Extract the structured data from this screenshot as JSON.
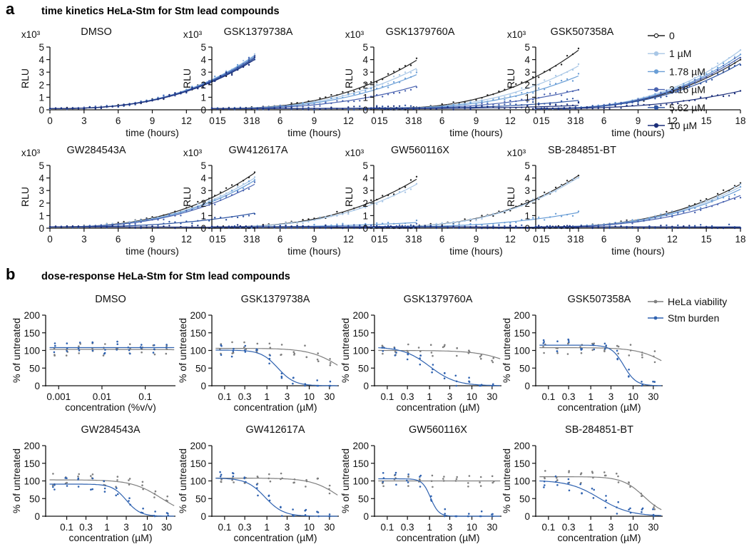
{
  "panels": {
    "a": {
      "label": "a",
      "heading": "time kinetics HeLa-Stm for Stm lead compounds"
    },
    "b": {
      "label": "b",
      "heading": "dose-response HeLa-Stm for Stm lead compounds"
    }
  },
  "colors": {
    "c0": "#222222",
    "c1": "#a9c7e6",
    "c2": "#6a9ed6",
    "c3": "#4a63b0",
    "c4": "#2f55a3",
    "c5": "#1c2f7a",
    "viability": "#7f7f7f",
    "burden": "#2f62b0"
  },
  "legend_a": {
    "items": [
      {
        "label": "0",
        "color": "#222222"
      },
      {
        "label": "1 µM",
        "color": "#a9c7e6"
      },
      {
        "label": "1.78 µM",
        "color": "#6a9ed6"
      },
      {
        "label": "3.16 µM",
        "color": "#4a63b0"
      },
      {
        "label": "5.62 µM",
        "color": "#2f55a3"
      },
      {
        "label": "10 µM",
        "color": "#1c2f7a"
      }
    ]
  },
  "legend_b": {
    "items": [
      {
        "label": "HeLa viability",
        "color": "#7f7f7f"
      },
      {
        "label": "Stm burden",
        "color": "#2f62b0"
      }
    ]
  },
  "chart_data": [
    {
      "type": "line",
      "title": "DMSO",
      "xlabel": "time (hours)",
      "ylabel": "RLU",
      "multiplier": "x10³",
      "xlim": [
        0,
        18
      ],
      "ylim": [
        0,
        5
      ],
      "xticks": [
        "0",
        "3",
        "6",
        "9",
        "12",
        "15",
        "18"
      ],
      "yticks": [
        "0",
        "1",
        "2",
        "3",
        "4",
        "5"
      ],
      "series": [
        {
          "name": "0",
          "end": 4.1
        },
        {
          "name": "1 µM",
          "end": 4.35
        },
        {
          "name": "1.78 µM",
          "end": 4.3
        },
        {
          "name": "3.16 µM",
          "end": 4.2
        },
        {
          "name": "5.62 µM",
          "end": 4.1
        },
        {
          "name": "10 µM",
          "end": 4.0
        }
      ]
    },
    {
      "type": "line",
      "title": "GSK1379738A",
      "xlabel": "time (hours)",
      "ylabel": "RLU",
      "multiplier": "x10³",
      "xlim": [
        0,
        18
      ],
      "ylim": [
        0,
        5
      ],
      "xticks": [
        "0",
        "3",
        "6",
        "9",
        "12",
        "15",
        "18"
      ],
      "yticks": [
        "0",
        "1",
        "2",
        "3",
        "4",
        "5"
      ],
      "series": [
        {
          "name": "0",
          "end": 3.95
        },
        {
          "name": "1 µM",
          "end": 3.3
        },
        {
          "name": "1.78 µM",
          "end": 2.8
        },
        {
          "name": "3.16 µM",
          "end": 1.9
        },
        {
          "name": "5.62 µM",
          "end": 0.18
        },
        {
          "name": "10 µM",
          "end": 0.1
        }
      ]
    },
    {
      "type": "line",
      "title": "GSK1379760A",
      "xlabel": "time (hours)",
      "ylabel": "RLU",
      "multiplier": "x10³",
      "xlim": [
        0,
        18
      ],
      "ylim": [
        0,
        5
      ],
      "xticks": [
        "0",
        "3",
        "6",
        "9",
        "12",
        "15",
        "18"
      ],
      "yticks": [
        "0",
        "1",
        "2",
        "3",
        "4",
        "5"
      ],
      "series": [
        {
          "name": "0",
          "end": 4.75
        },
        {
          "name": "1 µM",
          "end": 3.5
        },
        {
          "name": "1.78 µM",
          "end": 2.7
        },
        {
          "name": "3.16 µM",
          "end": 1.6
        },
        {
          "name": "5.62 µM",
          "end": 0.75
        },
        {
          "name": "10 µM",
          "end": 0.35
        }
      ]
    },
    {
      "type": "line",
      "title": "GSK507358A",
      "xlabel": "time (hours)",
      "ylabel": "RLU",
      "multiplier": "x10³",
      "xlim": [
        0,
        18
      ],
      "ylim": [
        0,
        5
      ],
      "xticks": [
        "0",
        "3",
        "6",
        "9",
        "12",
        "15",
        "18"
      ],
      "yticks": [
        "0",
        "1",
        "2",
        "3",
        "4",
        "5"
      ],
      "series": [
        {
          "name": "0",
          "end": 4.0
        },
        {
          "name": "1 µM",
          "end": 4.75
        },
        {
          "name": "1.78 µM",
          "end": 4.4
        },
        {
          "name": "3.16 µM",
          "end": 4.2
        },
        {
          "name": "5.62 µM",
          "end": 3.7
        },
        {
          "name": "10 µM",
          "end": 1.5
        }
      ]
    },
    {
      "type": "line",
      "title": "GW284543A",
      "xlabel": "time (hours)",
      "ylabel": "RLU",
      "multiplier": "x10³",
      "xlim": [
        0,
        18
      ],
      "ylim": [
        0,
        5
      ],
      "xticks": [
        "0",
        "3",
        "6",
        "9",
        "12",
        "15",
        "18"
      ],
      "yticks": [
        "0",
        "1",
        "2",
        "3",
        "4",
        "5"
      ],
      "series": [
        {
          "name": "0",
          "end": 4.4
        },
        {
          "name": "1 µM",
          "end": 4.0
        },
        {
          "name": "1.78 µM",
          "end": 3.8
        },
        {
          "name": "3.16 µM",
          "end": 3.5
        },
        {
          "name": "5.62 µM",
          "end": 1.2
        },
        {
          "name": "10 µM",
          "end": 0.05
        }
      ]
    },
    {
      "type": "line",
      "title": "GW412617A",
      "xlabel": "time (hours)",
      "ylabel": "RLU",
      "multiplier": "x10³",
      "xlim": [
        0,
        18
      ],
      "ylim": [
        0,
        5
      ],
      "xticks": [
        "0",
        "3",
        "6",
        "9",
        "12",
        "15",
        "18"
      ],
      "yticks": [
        "0",
        "1",
        "2",
        "3",
        "4",
        "5"
      ],
      "series": [
        {
          "name": "0",
          "end": 3.9
        },
        {
          "name": "1 µM",
          "end": 3.5
        },
        {
          "name": "1.78 µM",
          "end": 0.45
        },
        {
          "name": "3.16 µM",
          "end": 0.15
        },
        {
          "name": "5.62 µM",
          "end": 0.05
        },
        {
          "name": "10 µM",
          "end": 0.03
        }
      ]
    },
    {
      "type": "line",
      "title": "GW560116X",
      "xlabel": "time (hours)",
      "ylabel": "RLU",
      "multiplier": "x10³",
      "xlim": [
        0,
        18
      ],
      "ylim": [
        0,
        5
      ],
      "xticks": [
        "0",
        "3",
        "6",
        "9",
        "12",
        "15",
        "18"
      ],
      "yticks": [
        "0",
        "1",
        "2",
        "3",
        "4",
        "5"
      ],
      "series": [
        {
          "name": "0",
          "end": 4.2
        },
        {
          "name": "1 µM",
          "end": 4.05
        },
        {
          "name": "1.78 µM",
          "end": 1.25
        },
        {
          "name": "3.16 µM",
          "end": 0.05
        },
        {
          "name": "5.62 µM",
          "end": 0.03
        },
        {
          "name": "10 µM",
          "end": 0.02
        }
      ]
    },
    {
      "type": "line",
      "title": "SB-284851-BT",
      "xlabel": "time (hours)",
      "ylabel": "RLU",
      "multiplier": "x10³",
      "xlim": [
        0,
        18
      ],
      "ylim": [
        0,
        5
      ],
      "xticks": [
        "0",
        "3",
        "6",
        "9",
        "12",
        "15",
        "18"
      ],
      "yticks": [
        "0",
        "1",
        "2",
        "3",
        "4",
        "5"
      ],
      "series": [
        {
          "name": "0",
          "end": 3.5
        },
        {
          "name": "1 µM",
          "end": 3.3
        },
        {
          "name": "1.78 µM",
          "end": 3.1
        },
        {
          "name": "3.16 µM",
          "end": 2.6
        },
        {
          "name": "5.62 µM",
          "end": 0.1
        },
        {
          "name": "10 µM",
          "end": 0.05
        }
      ]
    },
    {
      "type": "scatter",
      "title": "DMSO",
      "xlabel": "concentration (%v/v)",
      "ylabel": "% of untreated",
      "xscale": "log",
      "xlim": [
        0.0005,
        0.5
      ],
      "ylim": [
        0,
        200
      ],
      "xtick_values": [
        0.001,
        0.01,
        0.1
      ],
      "xticks": [
        "0.001",
        "0.01",
        "0.1"
      ],
      "yticks": [
        "0",
        "50",
        "100",
        "150",
        "200"
      ],
      "series": [
        {
          "name": "HeLa viability",
          "fit": {
            "top": 103,
            "bottom": 100,
            "ec50": 1,
            "hill": 1
          }
        },
        {
          "name": "Stm burden",
          "fit": {
            "top": 108,
            "bottom": 108,
            "ec50": 1,
            "hill": 1
          }
        }
      ]
    },
    {
      "type": "scatter",
      "title": "GSK1379738A",
      "xlabel": "concentration (µM)",
      "ylabel": "% of untreated",
      "xscale": "log",
      "xlim": [
        0.05,
        50
      ],
      "ylim": [
        0,
        200
      ],
      "xtick_values": [
        0.1,
        0.3,
        1,
        3,
        10,
        30
      ],
      "xticks": [
        "0.1",
        "0.3",
        "1",
        "3",
        "10",
        "30"
      ],
      "yticks": [
        "0",
        "50",
        "100",
        "150",
        "200"
      ],
      "series": [
        {
          "name": "HeLa viability",
          "fit": {
            "top": 106,
            "bottom": 0,
            "ec50": 55,
            "hill": 1.2
          }
        },
        {
          "name": "Stm burden",
          "fit": {
            "top": 101,
            "bottom": 0,
            "ec50": 1.8,
            "hill": 2.2
          }
        }
      ]
    },
    {
      "type": "scatter",
      "title": "GSK1379760A",
      "xlabel": "concentration (µM)",
      "ylabel": "% of untreated",
      "xscale": "log",
      "xlim": [
        0.05,
        50
      ],
      "ylim": [
        0,
        200
      ],
      "xtick_values": [
        0.1,
        0.3,
        1,
        3,
        10,
        30
      ],
      "xticks": [
        "0.1",
        "0.3",
        "1",
        "3",
        "10",
        "30"
      ],
      "yticks": [
        "0",
        "50",
        "100",
        "150",
        "200"
      ],
      "series": [
        {
          "name": "HeLa viability",
          "fit": {
            "top": 100,
            "bottom": 0,
            "ec50": 150,
            "hill": 1
          }
        },
        {
          "name": "Stm burden",
          "fit": {
            "top": 110,
            "bottom": 0,
            "ec50": 1.0,
            "hill": 1.4
          }
        }
      ]
    },
    {
      "type": "scatter",
      "title": "GSK507358A",
      "xlabel": "concentration (µM)",
      "ylabel": "% of untreated",
      "xscale": "log",
      "xlim": [
        0.05,
        50
      ],
      "ylim": [
        0,
        200
      ],
      "xtick_values": [
        0.1,
        0.3,
        1,
        3,
        10,
        30
      ],
      "xticks": [
        "0.1",
        "0.3",
        "1",
        "3",
        "10",
        "30"
      ],
      "yticks": [
        "0",
        "50",
        "100",
        "150",
        "200"
      ],
      "series": [
        {
          "name": "HeLa viability",
          "fit": {
            "top": 108,
            "bottom": 0,
            "ec50": 80,
            "hill": 1.2
          }
        },
        {
          "name": "Stm burden",
          "fit": {
            "top": 115,
            "bottom": 0,
            "ec50": 6,
            "hill": 3
          }
        }
      ]
    },
    {
      "type": "scatter",
      "title": "GW284543A",
      "xlabel": "concentration (µM)",
      "ylabel": "% of untreated",
      "xscale": "log",
      "xlim": [
        0.03,
        50
      ],
      "ylim": [
        0,
        200
      ],
      "xtick_values": [
        0.1,
        0.3,
        1,
        3,
        10,
        30
      ],
      "xticks": [
        "0.1",
        "0.3",
        "1",
        "3",
        "10",
        "30"
      ],
      "yticks": [
        "0",
        "50",
        "100",
        "150",
        "200"
      ],
      "series": [
        {
          "name": "HeLa viability",
          "fit": {
            "top": 103,
            "bottom": 0,
            "ec50": 22,
            "hill": 1.2
          }
        },
        {
          "name": "Stm burden",
          "fit": {
            "top": 91,
            "bottom": 0,
            "ec50": 3,
            "hill": 2.5
          }
        }
      ]
    },
    {
      "type": "scatter",
      "title": "GW412617A",
      "xlabel": "concentration (µM)",
      "ylabel": "% of untreated",
      "xscale": "log",
      "xlim": [
        0.05,
        50
      ],
      "ylim": [
        0,
        200
      ],
      "xtick_values": [
        0.1,
        0.3,
        1,
        3,
        10,
        30
      ],
      "xticks": [
        "0.1",
        "0.3",
        "1",
        "3",
        "10",
        "30"
      ],
      "yticks": [
        "0",
        "50",
        "100",
        "150",
        "200"
      ],
      "series": [
        {
          "name": "HeLa viability",
          "fit": {
            "top": 108,
            "bottom": 0,
            "ec50": 55,
            "hill": 1.3
          }
        },
        {
          "name": "Stm burden",
          "fit": {
            "top": 108,
            "bottom": 0,
            "ec50": 0.9,
            "hill": 2
          }
        }
      ]
    },
    {
      "type": "scatter",
      "title": "GW560116X",
      "xlabel": "concentration (µM)",
      "ylabel": "% of untreated",
      "xscale": "log",
      "xlim": [
        0.05,
        50
      ],
      "ylim": [
        0,
        200
      ],
      "xtick_values": [
        0.1,
        0.3,
        1,
        3,
        10,
        30
      ],
      "xticks": [
        "0.1",
        "0.3",
        "1",
        "3",
        "10",
        "30"
      ],
      "yticks": [
        "0",
        "50",
        "100",
        "150",
        "200"
      ],
      "series": [
        {
          "name": "HeLa viability",
          "fit": {
            "top": 100,
            "bottom": 100,
            "ec50": 1,
            "hill": 1
          }
        },
        {
          "name": "Stm burden",
          "fit": {
            "top": 106,
            "bottom": 0,
            "ec50": 1.05,
            "hill": 4.5
          }
        }
      ]
    },
    {
      "type": "scatter",
      "title": "SB-284851-BT",
      "xlabel": "concentration (µM)",
      "ylabel": "% of untreated",
      "xscale": "log",
      "xlim": [
        0.05,
        50
      ],
      "ylim": [
        0,
        200
      ],
      "xtick_values": [
        0.1,
        0.3,
        1,
        3,
        10,
        30
      ],
      "xticks": [
        "0.1",
        "0.3",
        "1",
        "3",
        "10",
        "30"
      ],
      "yticks": [
        "0",
        "50",
        "100",
        "150",
        "200"
      ],
      "series": [
        {
          "name": "HeLa viability",
          "fit": {
            "top": 112,
            "bottom": 0,
            "ec50": 18,
            "hill": 1.7
          }
        },
        {
          "name": "Stm burden",
          "fit": {
            "top": 102,
            "bottom": 0,
            "ec50": 1.6,
            "hill": 1.2
          }
        }
      ]
    }
  ]
}
